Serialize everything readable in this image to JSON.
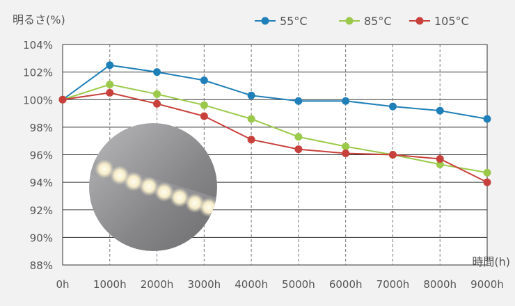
{
  "chart_data": {
    "type": "line",
    "ylabel": "明るさ(%)",
    "xlabel": "時間(h)",
    "x_ticks": [
      "0h",
      "1000h",
      "2000h",
      "3000h",
      "4000h",
      "5000h",
      "6000h",
      "7000h",
      "8000h",
      "9000h"
    ],
    "x": [
      0,
      1000,
      2000,
      3000,
      4000,
      5000,
      6000,
      7000,
      8000,
      9000
    ],
    "y_ticks": [
      "88%",
      "90%",
      "92%",
      "94%",
      "96%",
      "98%",
      "100%",
      "102%",
      "104%"
    ],
    "ylim": [
      88,
      104
    ],
    "xlim": [
      0,
      9000
    ],
    "legend_position": "top-right",
    "series": [
      {
        "name": "55°C",
        "color": "#1f7fb8",
        "values": [
          100,
          102.5,
          102.0,
          101.4,
          100.3,
          99.9,
          99.9,
          99.5,
          99.2,
          98.6
        ]
      },
      {
        "name": "85°C",
        "color": "#9bc94a",
        "values": [
          100,
          101.1,
          100.4,
          99.6,
          98.6,
          97.3,
          96.6,
          96.0,
          95.3,
          94.7
        ]
      },
      {
        "name": "105°C",
        "color": "#c8403b",
        "values": [
          100,
          100.5,
          99.7,
          98.8,
          97.1,
          96.4,
          96.1,
          96.0,
          95.7,
          94.0
        ]
      }
    ]
  }
}
